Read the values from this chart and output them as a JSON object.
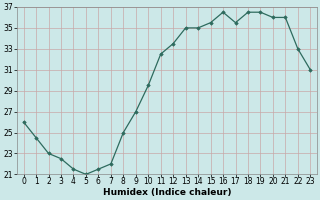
{
  "x": [
    0,
    1,
    2,
    3,
    4,
    5,
    6,
    7,
    8,
    9,
    10,
    11,
    12,
    13,
    14,
    15,
    16,
    17,
    18,
    19,
    20,
    21,
    22,
    23
  ],
  "y": [
    26,
    24.5,
    23,
    22.5,
    21.5,
    21,
    21.5,
    22,
    25,
    27,
    29.5,
    32.5,
    33.5,
    35,
    35,
    35.5,
    36.5,
    35.5,
    36.5,
    36.5,
    36,
    36,
    33,
    31
  ],
  "line_color": "#2e6b5e",
  "marker": "D",
  "marker_size": 1.8,
  "bg_color": "#cce8e8",
  "grid_color": "#b0d0d0",
  "xlabel": "Humidex (Indice chaleur)",
  "ylim": [
    21,
    37
  ],
  "yticks": [
    21,
    23,
    25,
    27,
    29,
    31,
    33,
    35,
    37
  ],
  "xticks": [
    0,
    1,
    2,
    3,
    4,
    5,
    6,
    7,
    8,
    9,
    10,
    11,
    12,
    13,
    14,
    15,
    16,
    17,
    18,
    19,
    20,
    21,
    22,
    23
  ],
  "xlabel_fontsize": 6.5,
  "tick_fontsize": 5.5,
  "linewidth": 0.9
}
